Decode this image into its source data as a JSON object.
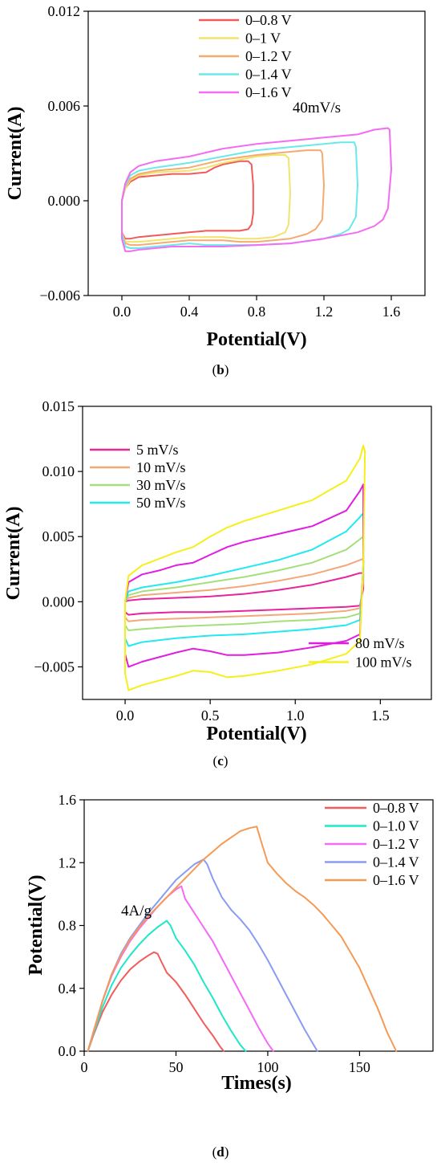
{
  "chart_data": [
    {
      "type": "line",
      "panel": "b",
      "caption": "(b)",
      "xlabel": "Potential(V)",
      "ylabel": "Current(A)",
      "xlim": [
        -0.2,
        1.8
      ],
      "ylim": [
        -0.006,
        0.012
      ],
      "xticks": [
        "0.0",
        "0.4",
        "0.8",
        "1.2",
        "1.6"
      ],
      "xtick_values": [
        0.0,
        0.4,
        0.8,
        1.2,
        1.6
      ],
      "yticks": [
        "−0.006",
        "0.000",
        "0.006",
        "0.012"
      ],
      "ytick_values": [
        -0.006,
        0.0,
        0.006,
        0.012
      ],
      "legend": "top-center",
      "annotation": "40mV/s",
      "series": [
        {
          "name": "0–0.8 V",
          "color": "#f15a5a",
          "x": [
            0.0,
            0.02,
            0.05,
            0.1,
            0.2,
            0.3,
            0.4,
            0.5,
            0.55,
            0.6,
            0.65,
            0.7,
            0.75,
            0.77,
            0.78,
            0.78,
            0.77,
            0.75,
            0.7,
            0.6,
            0.5,
            0.4,
            0.3,
            0.2,
            0.1,
            0.05,
            0.02,
            0.0,
            0.0
          ],
          "y": [
            0.0,
            0.0008,
            0.0012,
            0.0015,
            0.0016,
            0.0017,
            0.0017,
            0.0018,
            0.0021,
            0.0023,
            0.0024,
            0.0025,
            0.0025,
            0.0023,
            0.001,
            -0.0008,
            -0.0015,
            -0.0018,
            -0.0019,
            -0.0019,
            -0.0019,
            -0.002,
            -0.0021,
            -0.0022,
            -0.0023,
            -0.0024,
            -0.0024,
            -0.002,
            0.0
          ]
        },
        {
          "name": "0–1 V",
          "color": "#f2e36b",
          "x": [
            0.0,
            0.02,
            0.05,
            0.1,
            0.2,
            0.4,
            0.5,
            0.6,
            0.7,
            0.8,
            0.9,
            0.97,
            0.99,
            1.0,
            0.99,
            0.97,
            0.9,
            0.8,
            0.7,
            0.6,
            0.5,
            0.4,
            0.3,
            0.2,
            0.1,
            0.05,
            0.02,
            0.0,
            0.0
          ],
          "y": [
            0.0,
            0.0008,
            0.0013,
            0.0016,
            0.0018,
            0.0019,
            0.0021,
            0.0024,
            0.0026,
            0.0028,
            0.0029,
            0.0029,
            0.0027,
            0.0005,
            -0.0015,
            -0.002,
            -0.0023,
            -0.0024,
            -0.0024,
            -0.0023,
            -0.0023,
            -0.0023,
            -0.0024,
            -0.0025,
            -0.0026,
            -0.0026,
            -0.0026,
            -0.002,
            0.0
          ]
        },
        {
          "name": "0–1.2 V",
          "color": "#f5ab70",
          "x": [
            0.0,
            0.02,
            0.05,
            0.1,
            0.2,
            0.4,
            0.6,
            0.8,
            1.0,
            1.1,
            1.18,
            1.19,
            1.2,
            1.19,
            1.15,
            1.1,
            1.0,
            0.9,
            0.8,
            0.7,
            0.6,
            0.5,
            0.4,
            0.3,
            0.2,
            0.1,
            0.05,
            0.02,
            0.0,
            0.0
          ],
          "y": [
            0.0,
            0.0009,
            0.0014,
            0.0017,
            0.0019,
            0.0021,
            0.0026,
            0.0029,
            0.0031,
            0.0032,
            0.0032,
            0.003,
            0.001,
            -0.0012,
            -0.0018,
            -0.0021,
            -0.0024,
            -0.0025,
            -0.0026,
            -0.0026,
            -0.0025,
            -0.0025,
            -0.0025,
            -0.0026,
            -0.0027,
            -0.0028,
            -0.0028,
            -0.0027,
            -0.002,
            0.0
          ]
        },
        {
          "name": "0–1.4 V",
          "color": "#6be8ea",
          "x": [
            0.0,
            0.02,
            0.05,
            0.1,
            0.2,
            0.4,
            0.6,
            0.8,
            1.0,
            1.2,
            1.3,
            1.38,
            1.39,
            1.4,
            1.39,
            1.35,
            1.3,
            1.2,
            1.0,
            0.8,
            0.6,
            0.5,
            0.4,
            0.3,
            0.2,
            0.1,
            0.05,
            0.02,
            0.0,
            0.0
          ],
          "y": [
            0.0,
            0.001,
            0.0016,
            0.0019,
            0.0021,
            0.0024,
            0.0028,
            0.0032,
            0.0034,
            0.0036,
            0.0037,
            0.0037,
            0.0034,
            0.001,
            -0.001,
            -0.0018,
            -0.0021,
            -0.0024,
            -0.0027,
            -0.0028,
            -0.0028,
            -0.0028,
            -0.0027,
            -0.0028,
            -0.0029,
            -0.003,
            -0.003,
            -0.0029,
            -0.0021,
            0.0
          ]
        },
        {
          "name": "0–1.6 V",
          "color": "#f36cf1",
          "x": [
            0.0,
            0.02,
            0.05,
            0.1,
            0.2,
            0.4,
            0.6,
            0.8,
            1.0,
            1.2,
            1.4,
            1.5,
            1.58,
            1.59,
            1.6,
            1.58,
            1.55,
            1.5,
            1.4,
            1.2,
            1.0,
            0.8,
            0.6,
            0.5,
            0.4,
            0.3,
            0.2,
            0.1,
            0.05,
            0.02,
            0.0,
            0.0
          ],
          "y": [
            0.0,
            0.0011,
            0.0018,
            0.0022,
            0.0025,
            0.0028,
            0.0033,
            0.0036,
            0.0038,
            0.004,
            0.0042,
            0.0045,
            0.0046,
            0.0045,
            0.002,
            -0.0005,
            -0.0012,
            -0.0016,
            -0.002,
            -0.0024,
            -0.0027,
            -0.0028,
            -0.0029,
            -0.0029,
            -0.0029,
            -0.0029,
            -0.003,
            -0.0031,
            -0.0032,
            -0.0032,
            -0.0024,
            0.0
          ]
        }
      ]
    },
    {
      "type": "line",
      "panel": "c",
      "caption": "(c)",
      "xlabel": "Potential(V)",
      "ylabel": "Current(A)",
      "xlim": [
        -0.25,
        1.8
      ],
      "ylim": [
        -0.0075,
        0.015
      ],
      "xticks": [
        "0.0",
        "0.5",
        "1.0",
        "1.5"
      ],
      "xtick_values": [
        0.0,
        0.5,
        1.0,
        1.5
      ],
      "yticks": [
        "−0.005",
        "0.000",
        "0.005",
        "0.010",
        "0.015"
      ],
      "ytick_values": [
        -0.005,
        0.0,
        0.005,
        0.01,
        0.015
      ],
      "legend": "top-left and bottom-right",
      "series": [
        {
          "name": "5 mV/s",
          "color": "#e6249c",
          "x": [
            0.0,
            0.02,
            0.1,
            0.3,
            0.5,
            0.7,
            0.9,
            1.1,
            1.3,
            1.38,
            1.4,
            1.4,
            1.38,
            1.3,
            1.1,
            0.9,
            0.7,
            0.5,
            0.3,
            0.1,
            0.02,
            0.0,
            0.0
          ],
          "y": [
            0.0,
            0.0001,
            0.0002,
            0.0003,
            0.0004,
            0.0006,
            0.0009,
            0.0013,
            0.0019,
            0.0022,
            0.0022,
            0.001,
            -0.0003,
            -0.0004,
            -0.0005,
            -0.0006,
            -0.0007,
            -0.0008,
            -0.0008,
            -0.0009,
            -0.001,
            -0.0008,
            0.0
          ]
        },
        {
          "name": "10 mV/s",
          "color": "#f4a878",
          "x": [
            0.0,
            0.02,
            0.1,
            0.3,
            0.5,
            0.7,
            0.9,
            1.1,
            1.3,
            1.38,
            1.4,
            1.4,
            1.38,
            1.3,
            1.1,
            0.9,
            0.7,
            0.5,
            0.3,
            0.1,
            0.02,
            0.0,
            0.0
          ],
          "y": [
            0.0,
            0.0003,
            0.0005,
            0.0007,
            0.0009,
            0.0012,
            0.0016,
            0.0021,
            0.0028,
            0.0032,
            0.0033,
            0.0015,
            -0.0005,
            -0.0007,
            -0.0009,
            -0.001,
            -0.0011,
            -0.0012,
            -0.0013,
            -0.0014,
            -0.0015,
            -0.0012,
            0.0
          ]
        },
        {
          "name": "30 mV/s",
          "color": "#a4e07a",
          "x": [
            0.0,
            0.02,
            0.1,
            0.3,
            0.5,
            0.7,
            0.9,
            1.1,
            1.3,
            1.38,
            1.4,
            1.4,
            1.38,
            1.3,
            1.1,
            0.9,
            0.7,
            0.5,
            0.3,
            0.1,
            0.02,
            0.0,
            0.0
          ],
          "y": [
            0.0,
            0.0005,
            0.0008,
            0.0011,
            0.0015,
            0.0019,
            0.0024,
            0.003,
            0.004,
            0.0048,
            0.005,
            0.002,
            -0.0009,
            -0.0012,
            -0.0014,
            -0.0015,
            -0.0017,
            -0.0018,
            -0.0019,
            -0.0021,
            -0.0022,
            -0.0018,
            0.0
          ]
        },
        {
          "name": "50 mV/s",
          "color": "#22e8f0",
          "x": [
            0.0,
            0.02,
            0.1,
            0.3,
            0.5,
            0.7,
            0.9,
            1.1,
            1.3,
            1.38,
            1.4,
            1.4,
            1.38,
            1.3,
            1.1,
            0.9,
            0.7,
            0.5,
            0.3,
            0.1,
            0.02,
            0.0,
            0.0
          ],
          "y": [
            0.0,
            0.0008,
            0.0011,
            0.0015,
            0.002,
            0.0026,
            0.0032,
            0.004,
            0.0054,
            0.0065,
            0.0068,
            0.0025,
            -0.0014,
            -0.0018,
            -0.0021,
            -0.0023,
            -0.0025,
            -0.0026,
            -0.0028,
            -0.0031,
            -0.0034,
            -0.0028,
            0.0
          ]
        },
        {
          "name": "80 mV/s",
          "color": "#e01ee0",
          "x": [
            0.0,
            0.02,
            0.1,
            0.2,
            0.3,
            0.4,
            0.5,
            0.6,
            0.7,
            0.9,
            1.1,
            1.3,
            1.38,
            1.4,
            1.4,
            1.38,
            1.3,
            1.1,
            0.9,
            0.7,
            0.6,
            0.5,
            0.4,
            0.3,
            0.1,
            0.02,
            0.0,
            0.0
          ],
          "y": [
            0.0,
            0.0015,
            0.0021,
            0.0024,
            0.0028,
            0.003,
            0.0036,
            0.0042,
            0.0046,
            0.0052,
            0.0058,
            0.007,
            0.0085,
            0.009,
            0.003,
            -0.0025,
            -0.003,
            -0.0035,
            -0.0039,
            -0.0041,
            -0.0041,
            -0.0038,
            -0.0036,
            -0.0039,
            -0.0046,
            -0.005,
            -0.004,
            0.0
          ]
        },
        {
          "name": "100 mV/s",
          "color": "#f5ef1b",
          "x": [
            0.0,
            0.02,
            0.1,
            0.2,
            0.3,
            0.4,
            0.5,
            0.6,
            0.7,
            0.9,
            1.1,
            1.3,
            1.38,
            1.4,
            1.41,
            1.4,
            1.38,
            1.3,
            1.1,
            0.9,
            0.7,
            0.6,
            0.5,
            0.4,
            0.3,
            0.1,
            0.02,
            0.0,
            0.0
          ],
          "y": [
            0.0,
            0.002,
            0.0028,
            0.0033,
            0.0038,
            0.0042,
            0.005,
            0.0057,
            0.0062,
            0.007,
            0.0078,
            0.0093,
            0.011,
            0.012,
            0.0115,
            0.003,
            -0.003,
            -0.004,
            -0.0048,
            -0.0053,
            -0.0057,
            -0.0058,
            -0.0054,
            -0.0053,
            -0.0057,
            -0.0064,
            -0.0068,
            -0.0055,
            0.0
          ]
        }
      ]
    },
    {
      "type": "line",
      "panel": "d",
      "caption": "(d)",
      "xlabel": "Times(s)",
      "ylabel": "Potential(V)",
      "xlim": [
        0,
        190
      ],
      "ylim": [
        0.0,
        1.6
      ],
      "xticks": [
        "0",
        "50",
        "100",
        "150"
      ],
      "xtick_values": [
        0,
        50,
        100,
        150
      ],
      "yticks": [
        "0.0",
        "0.4",
        "0.8",
        "1.2",
        "1.6"
      ],
      "ytick_values": [
        0.0,
        0.4,
        0.8,
        1.2,
        1.6
      ],
      "legend": "top-right",
      "annotation": "4A/g",
      "series": [
        {
          "name": "0–0.8 V",
          "color": "#f25c5c",
          "x": [
            2,
            5,
            10,
            15,
            20,
            25,
            30,
            35,
            38,
            40,
            42,
            45,
            50,
            55,
            60,
            65,
            70,
            74,
            76
          ],
          "y": [
            0.0,
            0.1,
            0.25,
            0.36,
            0.45,
            0.52,
            0.57,
            0.61,
            0.63,
            0.62,
            0.57,
            0.5,
            0.44,
            0.36,
            0.27,
            0.18,
            0.1,
            0.03,
            0.0
          ]
        },
        {
          "name": "0–1.0 V",
          "color": "#1de8c8",
          "x": [
            2,
            5,
            10,
            15,
            20,
            25,
            30,
            35,
            40,
            45,
            47,
            50,
            55,
            60,
            65,
            70,
            75,
            80,
            85,
            88
          ],
          "y": [
            0.0,
            0.11,
            0.28,
            0.42,
            0.53,
            0.61,
            0.68,
            0.74,
            0.79,
            0.83,
            0.8,
            0.72,
            0.64,
            0.55,
            0.44,
            0.34,
            0.23,
            0.13,
            0.04,
            0.0
          ]
        },
        {
          "name": "0–1.2 V",
          "color": "#f56af5",
          "x": [
            2,
            5,
            10,
            15,
            20,
            25,
            30,
            35,
            40,
            45,
            50,
            53,
            55,
            60,
            65,
            70,
            75,
            80,
            85,
            90,
            95,
            100,
            103
          ],
          "y": [
            0.0,
            0.12,
            0.32,
            0.48,
            0.6,
            0.7,
            0.78,
            0.85,
            0.92,
            0.98,
            1.03,
            1.05,
            0.97,
            0.88,
            0.79,
            0.7,
            0.59,
            0.48,
            0.37,
            0.26,
            0.15,
            0.05,
            0.0
          ]
        },
        {
          "name": "0–1.4 V",
          "color": "#8a9cf2",
          "x": [
            2,
            5,
            10,
            15,
            20,
            25,
            30,
            35,
            40,
            45,
            50,
            55,
            60,
            65,
            67,
            70,
            75,
            80,
            85,
            90,
            95,
            100,
            105,
            110,
            115,
            120,
            125,
            127
          ],
          "y": [
            0.0,
            0.12,
            0.32,
            0.49,
            0.62,
            0.72,
            0.8,
            0.88,
            0.95,
            1.02,
            1.09,
            1.14,
            1.19,
            1.22,
            1.19,
            1.1,
            0.98,
            0.9,
            0.84,
            0.77,
            0.68,
            0.58,
            0.47,
            0.36,
            0.25,
            0.14,
            0.04,
            0.0
          ]
        },
        {
          "name": "0–1.6 V",
          "color": "#f59a55",
          "x": [
            2,
            5,
            10,
            15,
            20,
            25,
            30,
            35,
            40,
            45,
            50,
            55,
            60,
            65,
            70,
            75,
            80,
            85,
            90,
            94,
            96,
            100,
            105,
            110,
            115,
            120,
            125,
            130,
            135,
            140,
            145,
            150,
            155,
            160,
            165,
            170
          ],
          "y": [
            0.0,
            0.12,
            0.32,
            0.49,
            0.61,
            0.71,
            0.79,
            0.86,
            0.92,
            0.98,
            1.04,
            1.1,
            1.16,
            1.22,
            1.27,
            1.32,
            1.36,
            1.4,
            1.42,
            1.43,
            1.35,
            1.2,
            1.13,
            1.07,
            1.02,
            0.98,
            0.93,
            0.87,
            0.8,
            0.73,
            0.63,
            0.53,
            0.4,
            0.27,
            0.12,
            0.0
          ]
        }
      ]
    }
  ]
}
